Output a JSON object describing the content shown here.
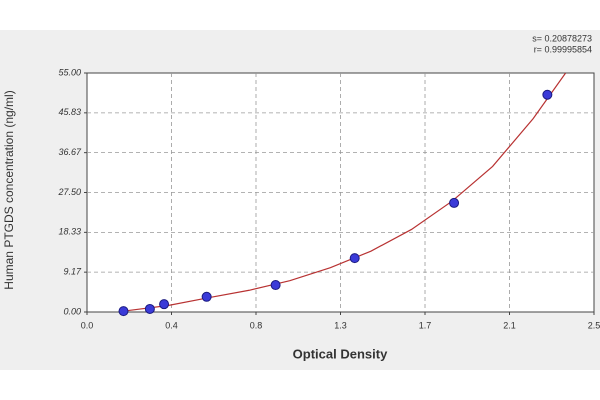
{
  "chart_data": {
    "type": "scatter",
    "x_label": "Optical Density",
    "y_label": "Human PTGDS concentration (ng/ml)",
    "annotations": [
      "s= 0.20878273",
      "r= 0.99995854"
    ],
    "series": [
      {
        "color": "#3a3ad8",
        "x": [
          0.18,
          0.31,
          0.38,
          0.59,
          0.93,
          1.32,
          1.81,
          2.27
        ],
        "values": [
          0.2,
          0.7,
          1.8,
          3.5,
          6.2,
          12.4,
          25.1,
          50.0
        ]
      }
    ],
    "curve": {
      "color": "#b83232",
      "x": [
        0.18,
        0.4,
        0.6,
        0.8,
        1.0,
        1.2,
        1.4,
        1.6,
        1.8,
        2.0,
        2.2,
        2.36
      ],
      "y": [
        0.2,
        1.5,
        3.3,
        5.0,
        7.2,
        10.2,
        14.0,
        19.0,
        25.5,
        33.5,
        44.5,
        55.0
      ]
    },
    "xlim": [
      0,
      2.5
    ],
    "xticks": [
      {
        "value": 0,
        "label": "0.0"
      },
      {
        "value": 0.4167,
        "label": "0.4"
      },
      {
        "value": 0.8333,
        "label": "0.8"
      },
      {
        "value": 1.25,
        "label": "1.3"
      },
      {
        "value": 1.6667,
        "label": "1.7"
      },
      {
        "value": 2.0833,
        "label": "2.1"
      },
      {
        "value": 2.5,
        "label": "2.5"
      }
    ],
    "ylim": [
      0,
      55
    ],
    "yticks": [
      {
        "value": 0,
        "label": "0.00"
      },
      {
        "value": 9.17,
        "label": "9.17"
      },
      {
        "value": 18.33,
        "label": "18.33"
      },
      {
        "value": 27.5,
        "label": "27.50"
      },
      {
        "value": 36.67,
        "label": "36.67"
      },
      {
        "value": 45.83,
        "label": "45.83"
      },
      {
        "value": 55,
        "label": "55.00"
      }
    ],
    "grid": true
  }
}
